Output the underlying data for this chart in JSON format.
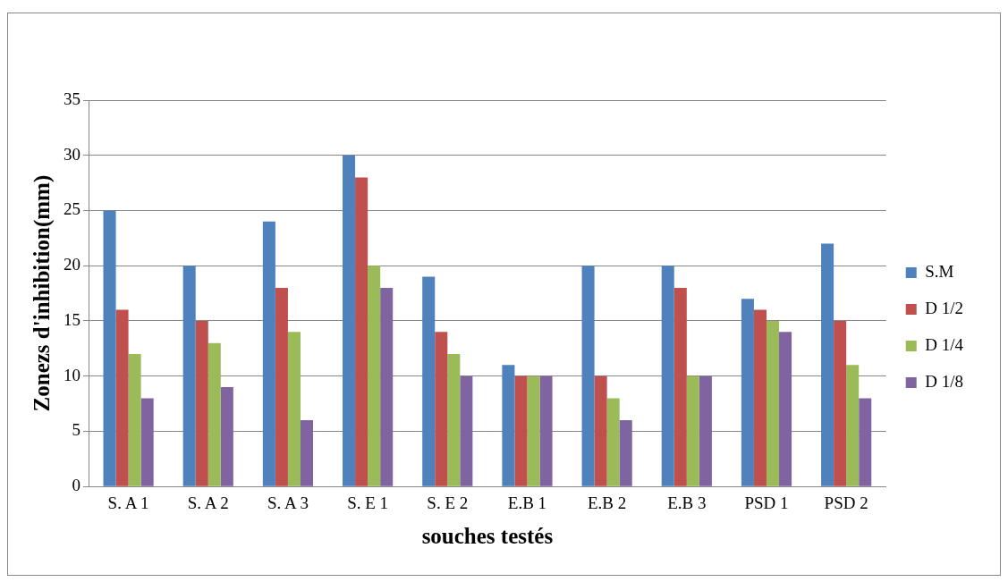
{
  "chart_data": {
    "type": "bar",
    "xlabel": "souches testés",
    "ylabel": "Zonezs d'inhibition(mm)",
    "categories": [
      "S. A 1",
      "S. A 2",
      "S. A 3",
      "S. E 1",
      "S. E 2",
      "E.B 1",
      "E.B 2",
      "E.B 3",
      "PSD 1",
      "PSD 2"
    ],
    "series": [
      {
        "name": "S.M",
        "color": "#4f81bd",
        "values": [
          25,
          20,
          24,
          30,
          19,
          11,
          20,
          20,
          17,
          22
        ]
      },
      {
        "name": "D 1/2",
        "color": "#c0504d",
        "values": [
          16,
          15,
          18,
          28,
          14,
          10,
          10,
          18,
          16,
          15
        ]
      },
      {
        "name": "D 1/4",
        "color": "#9bbb59",
        "values": [
          12,
          13,
          14,
          20,
          12,
          10,
          8,
          10,
          15,
          11
        ]
      },
      {
        "name": "D 1/8",
        "color": "#8064a2",
        "values": [
          8,
          9,
          6,
          18,
          10,
          10,
          6,
          10,
          14,
          8
        ]
      }
    ],
    "ylim": [
      0,
      35
    ],
    "yticks": [
      0,
      5,
      10,
      15,
      20,
      25,
      30,
      35
    ],
    "grid": "y",
    "legend": "right"
  }
}
